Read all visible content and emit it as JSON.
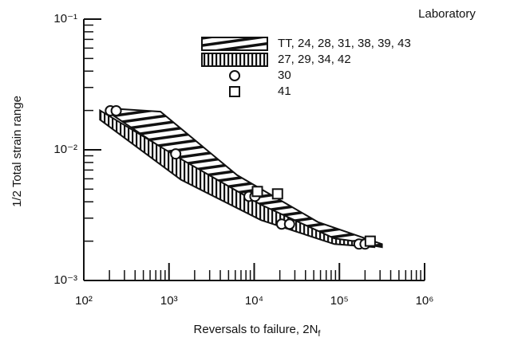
{
  "chart_data": {
    "type": "scatter",
    "y_label": "1/2 Total strain range",
    "x_label": "Reversals to failure, 2N",
    "x_label_subscript": "f",
    "legend_title": "Laboratory",
    "log_x": true,
    "log_y": true,
    "xlim": [
      100,
      1000000
    ],
    "ylim": [
      0.001,
      0.1
    ],
    "xticks": [
      {
        "value": 100,
        "label": "10²"
      },
      {
        "value": 1000,
        "label": "10³"
      },
      {
        "value": 10000,
        "label": "10⁴"
      },
      {
        "value": 100000,
        "label": "10⁵"
      },
      {
        "value": 1000000,
        "label": "10⁶"
      }
    ],
    "yticks": [
      {
        "value": 0.001,
        "label": "10⁻³"
      },
      {
        "value": 0.01,
        "label": "10⁻²"
      },
      {
        "value": 0.1,
        "label": "10⁻¹"
      }
    ],
    "series": [
      {
        "name": "TT, 24, 28, 31, 38, 39, 43",
        "kind": "band",
        "hatch": "horizontal",
        "color": "#111111",
        "x": [
          192,
          795,
          6300,
          56000,
          316000
        ],
        "upper": [
          0.0208,
          0.0196,
          0.0064,
          0.0028,
          0.0019
        ],
        "lower": [
          0.0195,
          0.0105,
          0.0043,
          0.0022,
          0.0018
        ]
      },
      {
        "name": "27, 29, 34, 42",
        "kind": "band",
        "hatch": "vertical",
        "color": "#111111",
        "x": [
          155,
          1380,
          12000,
          87000,
          258000
        ],
        "upper": [
          0.02,
          0.0085,
          0.0038,
          0.0021,
          0.0019
        ],
        "lower": [
          0.017,
          0.0059,
          0.0029,
          0.0019,
          0.0018
        ]
      },
      {
        "name": "30",
        "kind": "points",
        "marker": "circle",
        "color": "#111111",
        "x": [
          205,
          240,
          1200,
          8700,
          10200,
          21000,
          26000,
          170000,
          200000
        ],
        "values": [
          0.0199,
          0.0199,
          0.0093,
          0.0044,
          0.0044,
          0.0027,
          0.0027,
          0.0019,
          0.0019
        ]
      },
      {
        "name": "41",
        "kind": "points",
        "marker": "square",
        "color": "#111111",
        "x": [
          10900,
          18800,
          230000
        ],
        "values": [
          0.0048,
          0.0046,
          0.002
        ]
      }
    ]
  }
}
